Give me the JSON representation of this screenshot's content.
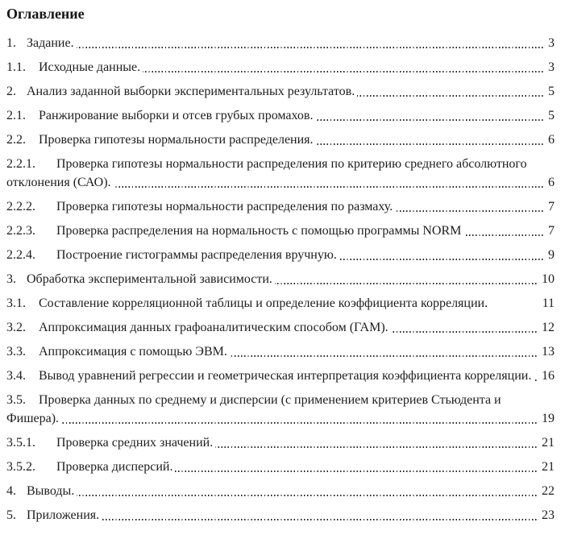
{
  "document": {
    "heading": "Оглавление",
    "toc_entries": [
      {
        "number": "1.",
        "level": 1,
        "title": "Задание.",
        "page": "3",
        "leader": true
      },
      {
        "number": "1.1.",
        "level": 2,
        "title": "Исходные данные.",
        "page": "3",
        "leader": true
      },
      {
        "number": "2.",
        "level": 1,
        "title": "Анализ заданной выборки экспериментальных результатов.",
        "page": "5",
        "leader": true
      },
      {
        "number": "2.1.",
        "level": 2,
        "title": "Ранжирование выборки и отсев грубых промахов.",
        "page": "5",
        "leader": true
      },
      {
        "number": "2.2.",
        "level": 2,
        "title": "Проверка гипотезы нормальности распределения.",
        "page": "6",
        "leader": true
      },
      {
        "number": "2.2.1.",
        "level": 3,
        "title": "Проверка гипотезы нормальности распределения по критерию среднего абсолютного отклонения (САО).",
        "page": "6",
        "leader": true
      },
      {
        "number": "2.2.2.",
        "level": 3,
        "title": "Проверка гипотезы нормальности распределения по размаху.",
        "page": "7",
        "leader": true
      },
      {
        "number": "2.2.3.",
        "level": 3,
        "title": "Проверка распределения на нормальность с помощью программы NORM",
        "page": "7",
        "leader": true
      },
      {
        "number": "2.2.4.",
        "level": 3,
        "title": "Построение гистограммы распределения вручную.",
        "page": "9",
        "leader": true
      },
      {
        "number": "3.",
        "level": 1,
        "title": "Обработка экспериментальной зависимости.",
        "page": "10",
        "leader": true
      },
      {
        "number": "3.1.",
        "level": 2,
        "title": "Составление корреляционной таблицы и определение коэффициента корреляции.",
        "page": "11",
        "leader": false
      },
      {
        "number": "3.2.",
        "level": 2,
        "title": "Аппроксимация данных графоаналитическим способом (ГАМ).",
        "page": "12",
        "leader": true
      },
      {
        "number": "3.3.",
        "level": 2,
        "title": "Аппроксимация с помощью ЭВМ.",
        "page": "13",
        "leader": true
      },
      {
        "number": "3.4.",
        "level": 2,
        "title": "Вывод уравнений регрессии и геометрическая интерпретация коэффициента корреляции.",
        "page": "16",
        "leader": true
      },
      {
        "number": "3.5.",
        "level": 2,
        "title": "Проверка данных по среднему и дисперсии (с применением критериев Стьюдента и Фишера).",
        "page": "19",
        "leader": true
      },
      {
        "number": "3.5.1.",
        "level": 3,
        "title": "Проверка средних значений.",
        "page": "21",
        "leader": true
      },
      {
        "number": "3.5.2.",
        "level": 3,
        "title": "Проверка дисперсий.",
        "page": "21",
        "leader": true
      },
      {
        "number": "4.",
        "level": 1,
        "title": "Выводы.",
        "page": "22",
        "leader": true
      },
      {
        "number": "5.",
        "level": 1,
        "title": "Приложения.",
        "page": "23",
        "leader": true
      }
    ]
  },
  "colors": {
    "text": "#1d1d1f",
    "background": "#ffffff"
  }
}
